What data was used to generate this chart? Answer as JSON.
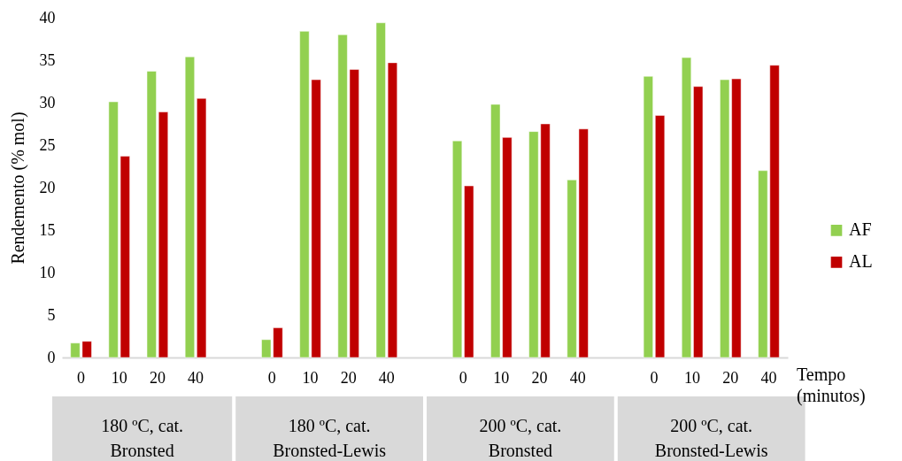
{
  "chart_data": {
    "type": "bar",
    "ylabel": "Rendemento (% mol)",
    "xlabel": "Tempo (minutos)",
    "categories": [
      "0",
      "10",
      "20",
      "40",
      null,
      "0",
      "10",
      "20",
      "40",
      null,
      "0",
      "10",
      "20",
      "40",
      null,
      "0",
      "10",
      "20",
      "40"
    ],
    "series": [
      {
        "name": "AF",
        "color": "#92d050",
        "values": [
          1.7,
          30.1,
          33.7,
          35.4,
          null,
          2.1,
          38.4,
          38.0,
          39.4,
          null,
          25.5,
          29.8,
          26.6,
          20.9,
          null,
          33.1,
          35.3,
          32.7,
          22.0
        ]
      },
      {
        "name": "AL",
        "color": "#c00000",
        "values": [
          1.9,
          23.7,
          28.9,
          30.5,
          null,
          3.5,
          32.7,
          33.9,
          34.7,
          null,
          20.2,
          25.9,
          27.5,
          26.9,
          null,
          28.5,
          31.9,
          32.8,
          34.4
        ]
      }
    ],
    "ylim": [
      0,
      40
    ],
    "yticks": [
      0,
      5,
      10,
      15,
      20,
      25,
      30,
      35,
      40
    ],
    "grid": false,
    "legend": "right",
    "annotations": [
      "180 ºC, cat.\nBronsted",
      "180 ºC, cat.\nBronsted-Lewis",
      "200 ºC, cat.\nBronsted",
      "200 ºC, cat.\nBronsted-Lewis"
    ]
  }
}
